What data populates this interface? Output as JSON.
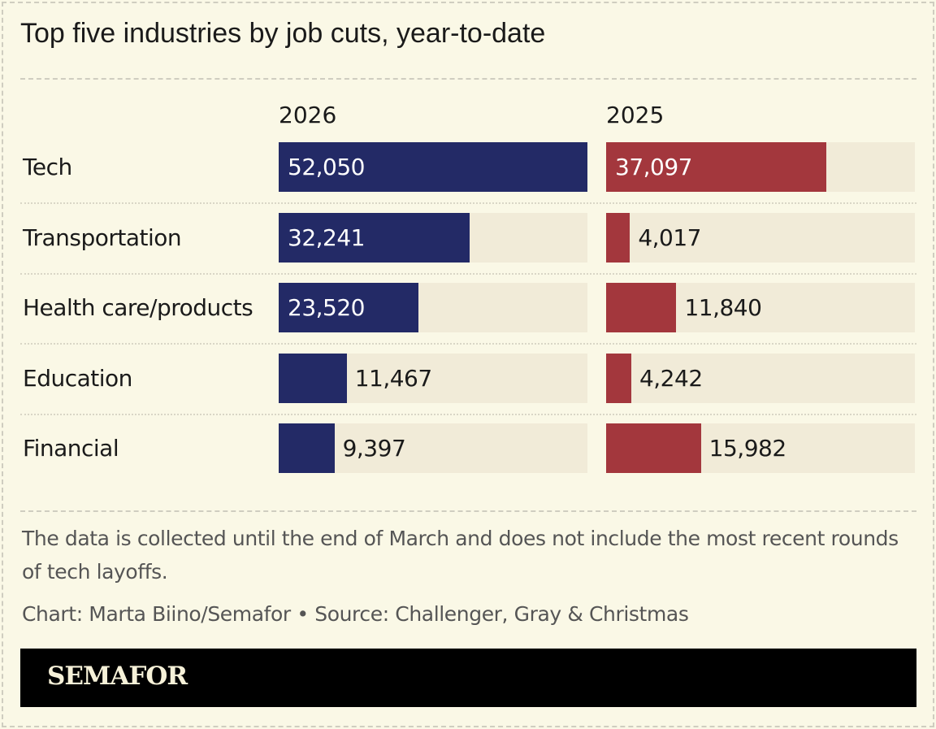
{
  "chart_data": {
    "type": "bar",
    "title": "Top five industries by job cuts, year-to-date",
    "categories": [
      "Tech",
      "Transportation",
      "Health care/products",
      "Education",
      "Financial"
    ],
    "series": [
      {
        "name": "2026",
        "values": [
          52050,
          32241,
          23520,
          11467,
          9397
        ],
        "labels": [
          "52,050",
          "32,241",
          "23,520",
          "11,467",
          "9,397"
        ],
        "color": "#232a66"
      },
      {
        "name": "2025",
        "values": [
          37097,
          4017,
          11840,
          4242,
          15982
        ],
        "labels": [
          "37,097",
          "4,017",
          "11,840",
          "4,242",
          "15,982"
        ],
        "color": "#a3373d"
      }
    ],
    "xlim": [
      0,
      52050
    ],
    "grid": false,
    "track_color": "#f1ebd8"
  },
  "note": "The data is collected until the end of March and does not include the most recent rounds of tech layoffs.",
  "credit": "Chart: Marta Biino/Semafor • Source: Challenger, Gray & Christmas",
  "logo": "SEMAFOR"
}
